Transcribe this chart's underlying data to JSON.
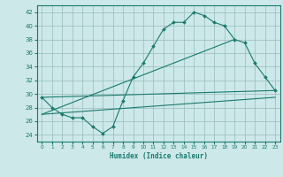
{
  "xlabel": "Humidex (Indice chaleur)",
  "bg_color": "#cce8e8",
  "line_color": "#1a7a6e",
  "grid_color": "#99bbbb",
  "xlim": [
    -0.5,
    23.5
  ],
  "ylim": [
    23,
    43
  ],
  "yticks": [
    24,
    26,
    28,
    30,
    32,
    34,
    36,
    38,
    40,
    42
  ],
  "xticks": [
    0,
    1,
    2,
    3,
    4,
    5,
    6,
    7,
    8,
    9,
    10,
    11,
    12,
    13,
    14,
    15,
    16,
    17,
    18,
    19,
    20,
    21,
    22,
    23
  ],
  "curve_x": [
    0,
    1,
    2,
    3,
    4,
    5,
    6,
    7,
    8,
    9,
    10,
    11,
    12,
    13,
    14,
    15,
    16,
    17,
    18,
    19,
    20,
    21,
    22,
    23
  ],
  "curve_y": [
    29.5,
    28.0,
    27.0,
    26.5,
    26.5,
    25.2,
    24.2,
    25.2,
    29.0,
    32.5,
    34.5,
    37.0,
    39.5,
    40.5,
    40.5,
    42.0,
    41.5,
    40.5,
    40.0,
    38.0,
    37.5,
    34.5,
    32.5,
    30.5
  ],
  "line1_x": [
    0,
    23
  ],
  "line1_y": [
    29.5,
    30.5
  ],
  "line2_x": [
    0,
    19
  ],
  "line2_y": [
    27.0,
    38.0
  ],
  "line3_x": [
    0,
    23
  ],
  "line3_y": [
    27.0,
    29.5
  ],
  "figwidth": 3.2,
  "figheight": 2.0,
  "dpi": 100
}
